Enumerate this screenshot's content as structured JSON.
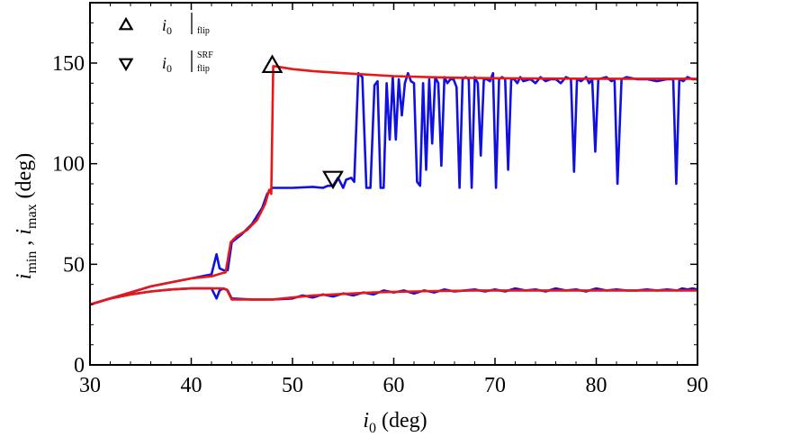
{
  "chart_data": {
    "type": "line",
    "xlabel": {
      "var": "i",
      "sub": "0",
      "unit": "(deg)"
    },
    "ylabel": {
      "var1": "i",
      "sub1": "min",
      "sep": " , ",
      "var2": "i",
      "sub2": "max",
      "unit": "(deg)"
    },
    "xlim": [
      30,
      90
    ],
    "ylim": [
      0,
      180
    ],
    "xticks": [
      30,
      40,
      50,
      60,
      70,
      80,
      90
    ],
    "yticks": [
      0,
      50,
      100,
      150
    ],
    "colors": {
      "blue": "#1010e0",
      "red": "#e81818",
      "axis": "#000000"
    },
    "legend": [
      {
        "marker": "triangle-up",
        "var": "i",
        "sub": "0",
        "bar_sub": "flip",
        "bar_sup": ""
      },
      {
        "marker": "triangle-down",
        "var": "i",
        "sub": "0",
        "bar_sub": "flip",
        "bar_sup": "SRF"
      }
    ],
    "markers": [
      {
        "name": "flip-marker",
        "type": "triangle-up",
        "x": 48.0,
        "y": 148.5
      },
      {
        "name": "srf-flip-marker",
        "type": "triangle-down",
        "x": 54.0,
        "y": 93.0
      }
    ],
    "series": [
      {
        "name": "imax-blue",
        "color": "#1010e0",
        "x": [
          30,
          32,
          34,
          36,
          38,
          40,
          42,
          42.5,
          42.8,
          43.2,
          43.6,
          44,
          45,
          46,
          46.5,
          47,
          47.5,
          48,
          48.3,
          50,
          52,
          53,
          53.5,
          54,
          54.5,
          55,
          55.3,
          55.8,
          56.1,
          56.5,
          56.9,
          57.3,
          57.7,
          58.1,
          58.4,
          58.7,
          59,
          59.3,
          59.6,
          59.9,
          60.2,
          60.5,
          60.8,
          61.1,
          61.4,
          61.7,
          62,
          62.3,
          62.6,
          62.9,
          63.2,
          63.5,
          63.8,
          64.1,
          64.4,
          64.7,
          65,
          65.3,
          65.6,
          65.9,
          66.2,
          66.5,
          66.8,
          67.1,
          67.4,
          67.7,
          68,
          68.3,
          68.6,
          68.9,
          69.2,
          69.5,
          69.8,
          70.1,
          70.4,
          70.7,
          71,
          71.3,
          71.6,
          71.9,
          72.2,
          72.5,
          72.8,
          73.5,
          74,
          74.5,
          75,
          75.5,
          76,
          76.5,
          77,
          77.5,
          77.8,
          78.1,
          78.5,
          79,
          79.3,
          79.6,
          79.9,
          80.2,
          81,
          81.5,
          81.8,
          82.1,
          82.5,
          83,
          84,
          85,
          86,
          87,
          87.6,
          87.9,
          88.2,
          88.6,
          89,
          89.5,
          90
        ],
        "y": [
          30,
          33,
          36,
          39,
          41,
          43,
          45,
          55,
          48,
          47,
          47,
          61,
          65,
          70,
          74,
          78,
          85,
          88,
          88,
          88,
          88.5,
          88,
          89,
          89,
          93,
          88,
          92,
          93,
          91,
          145,
          143,
          88,
          88,
          139,
          141,
          88,
          88,
          140,
          112,
          143,
          112,
          142,
          124,
          140,
          145,
          141,
          140,
          91,
          89,
          140,
          97,
          142,
          110,
          143,
          140,
          99,
          143,
          140,
          142,
          142,
          138,
          88,
          142,
          143,
          142,
          88,
          143,
          140,
          104,
          142,
          142,
          141,
          145,
          88,
          142,
          143,
          142,
          97,
          142,
          142,
          140,
          143,
          141,
          142,
          140,
          143,
          141,
          142,
          142,
          140,
          143,
          142,
          96,
          142,
          141,
          143,
          140,
          142,
          106,
          142,
          143,
          141,
          142,
          90,
          142,
          143,
          142,
          142,
          141,
          142,
          142,
          90,
          142,
          141,
          143,
          142,
          142
        ]
      },
      {
        "name": "imax-red",
        "color": "#e81818",
        "x": [
          30,
          32,
          34,
          36,
          38,
          40,
          42,
          43,
          43.4,
          43.9,
          44.5,
          45.5,
          46.5,
          47.3,
          47.7,
          47.9,
          48.1,
          48.4,
          50,
          52,
          55,
          60,
          65,
          70,
          75,
          80,
          85,
          90
        ],
        "y": [
          30,
          33,
          36,
          39,
          41,
          43,
          44,
          45.5,
          46,
          61,
          64,
          67,
          72,
          80,
          87,
          85,
          148.5,
          148.3,
          147,
          146,
          145,
          143.5,
          142.8,
          142.5,
          142.3,
          142.2,
          142.2,
          142.2
        ]
      },
      {
        "name": "imin-blue",
        "color": "#1010e0",
        "x": [
          30,
          32,
          34,
          36,
          38,
          40,
          42,
          42.5,
          42.8,
          43.2,
          43.6,
          44,
          46,
          48,
          50,
          51,
          52,
          53,
          54,
          55,
          56,
          57,
          58,
          59,
          60,
          61,
          62,
          63,
          64,
          65,
          66,
          67,
          68,
          69,
          70,
          71,
          72,
          73,
          74,
          75,
          76,
          77,
          78,
          79,
          80,
          81,
          82,
          83,
          84,
          85,
          86,
          87,
          88,
          88.5,
          89,
          89.5,
          90
        ],
        "y": [
          30,
          33,
          35,
          36.5,
          37.5,
          38,
          38,
          33,
          37,
          38,
          37,
          33,
          32.5,
          32.5,
          33,
          34.5,
          33.5,
          35,
          34,
          35.5,
          34.5,
          36,
          35,
          37,
          36,
          37,
          35.5,
          37,
          36,
          37.5,
          36.5,
          37,
          37.5,
          36.5,
          37.5,
          36.5,
          38,
          37,
          37.5,
          36.5,
          38,
          37,
          37.5,
          36.5,
          38,
          37,
          37.5,
          37,
          37,
          37.5,
          37,
          37.5,
          37,
          38,
          37.5,
          38,
          37.5
        ]
      },
      {
        "name": "imin-red",
        "color": "#e81818",
        "x": [
          30,
          32,
          34,
          36,
          38,
          40,
          42,
          43,
          43.5,
          44,
          46,
          48,
          50,
          52,
          54,
          56,
          58,
          60,
          62,
          64,
          66,
          68,
          70,
          72,
          74,
          76,
          78,
          80,
          82,
          84,
          86,
          88,
          90
        ],
        "y": [
          30,
          33,
          35,
          36.5,
          37.5,
          38,
          38,
          38,
          37.5,
          32.5,
          32.5,
          32.5,
          33.5,
          34.5,
          35,
          35.5,
          36,
          36.3,
          36.5,
          36.7,
          36.8,
          37,
          37,
          37,
          37,
          37,
          37,
          37,
          37,
          37,
          37,
          37,
          37
        ]
      }
    ]
  }
}
